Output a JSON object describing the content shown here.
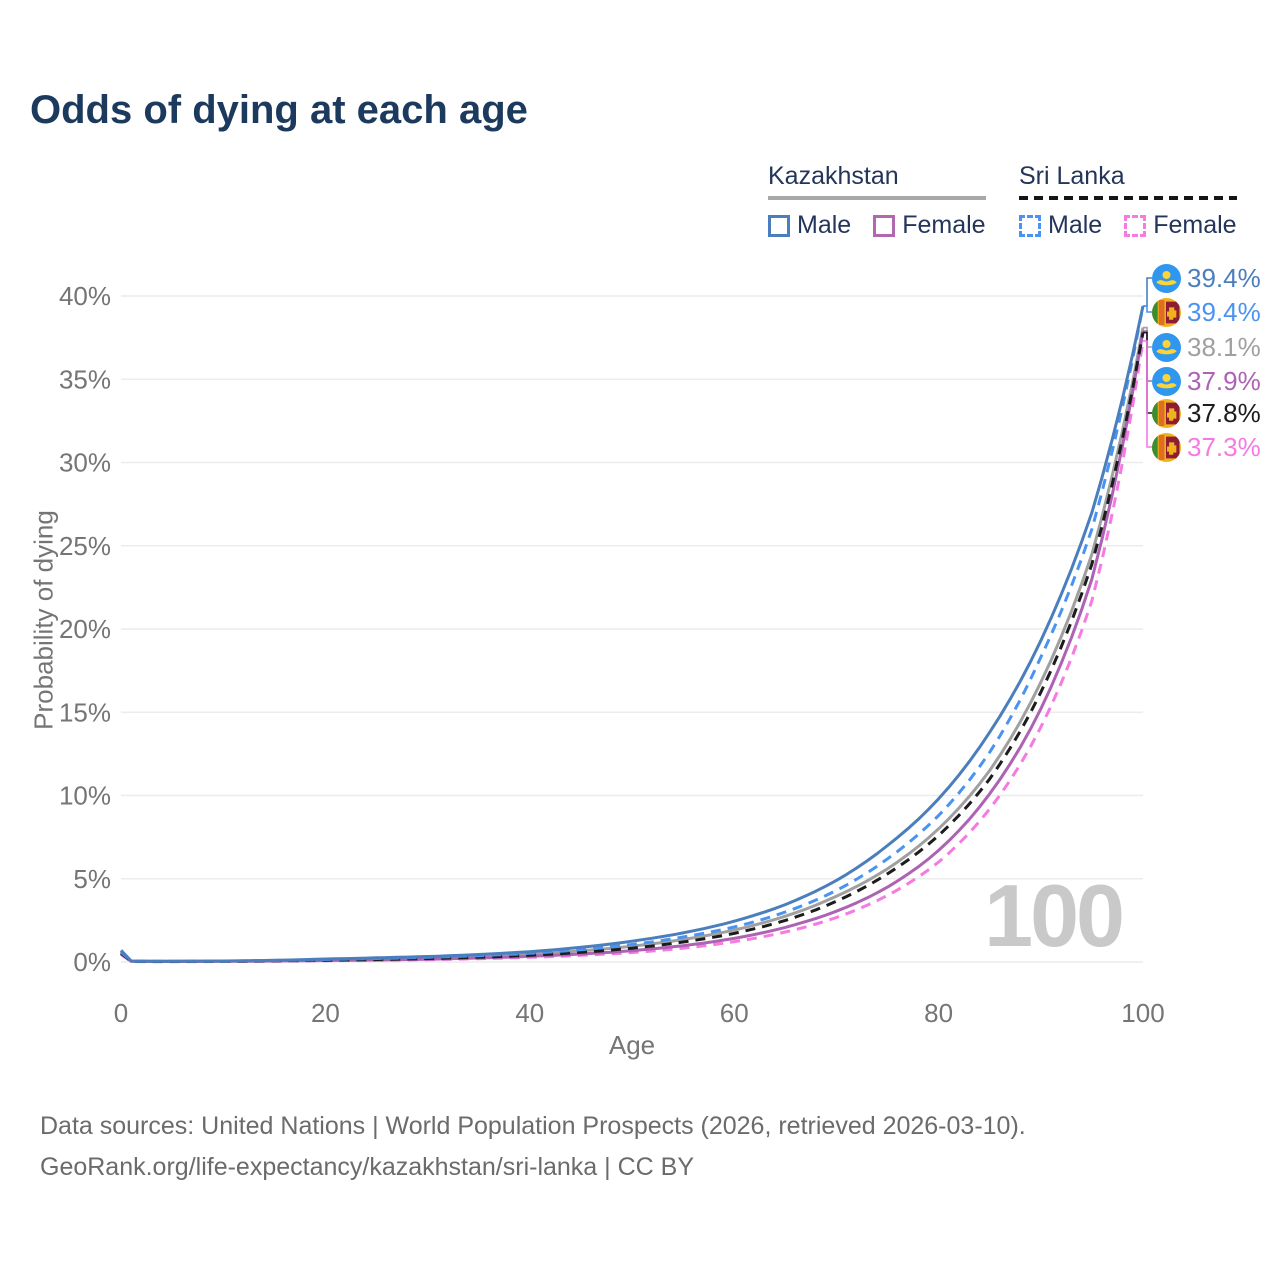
{
  "title": "Odds of dying at each age",
  "watermark_age": "100",
  "legend": {
    "kazakhstan": {
      "label": "Kazakhstan",
      "male": "Male",
      "female": "Female"
    },
    "sri_lanka": {
      "label": "Sri Lanka",
      "male": "Male",
      "female": "Female"
    }
  },
  "footer": {
    "line1": "Data sources: United Nations | World Population Prospects (2026, retrieved 2026-03-10).",
    "line2": "GeoRank.org/life-expectancy/kazakhstan/sri-lanka | CC BY"
  },
  "chart_data": {
    "type": "line",
    "title": "Odds of dying at each age",
    "xlabel": "Age",
    "ylabel": "Probability of dying",
    "xlim": [
      0,
      100
    ],
    "ylim": [
      0,
      40
    ],
    "x_ticks": [
      0,
      20,
      40,
      60,
      80,
      100
    ],
    "y_ticks": [
      0,
      5,
      10,
      15,
      20,
      25,
      30,
      35,
      40
    ],
    "y_tick_suffix": "%",
    "grid": "horizontal",
    "legend_position": "top-right",
    "ages": [
      0,
      1,
      3,
      5,
      10,
      15,
      20,
      25,
      30,
      35,
      40,
      45,
      50,
      55,
      60,
      65,
      70,
      75,
      80,
      85,
      90,
      95,
      100
    ],
    "series": [
      {
        "name": "Sri Lanka Female",
        "country": "sri-lanka",
        "sex": "female",
        "style": "dashed",
        "color": "#f779e2",
        "values": [
          0.45,
          0.03,
          0.02,
          0.02,
          0.03,
          0.05,
          0.08,
          0.1,
          0.14,
          0.2,
          0.28,
          0.4,
          0.57,
          0.83,
          1.22,
          1.8,
          2.67,
          4.0,
          6.0,
          9.2,
          14.1,
          21.7,
          37.3
        ]
      },
      {
        "name": "Kazakhstan Combined",
        "country": "kazakhstan",
        "sex": "combined",
        "style": "solid",
        "color": "#a0a0a0",
        "values": [
          0.62,
          0.05,
          0.04,
          0.04,
          0.05,
          0.08,
          0.14,
          0.19,
          0.26,
          0.35,
          0.48,
          0.67,
          0.95,
          1.35,
          1.92,
          2.75,
          3.95,
          5.6,
          8.0,
          11.5,
          16.8,
          24.5,
          38.1
        ]
      },
      {
        "name": "Kazakhstan Female",
        "country": "kazakhstan",
        "sex": "female",
        "style": "solid",
        "color": "#ad62b4",
        "values": [
          0.55,
          0.04,
          0.03,
          0.03,
          0.04,
          0.06,
          0.09,
          0.12,
          0.17,
          0.24,
          0.34,
          0.48,
          0.68,
          0.98,
          1.42,
          2.08,
          3.05,
          4.5,
          6.7,
          10.1,
          15.2,
          23.0,
          37.9
        ]
      },
      {
        "name": "Sri Lanka Combined",
        "country": "sri-lanka",
        "sex": "combined",
        "style": "dashed",
        "color": "#1c1c1c",
        "values": [
          0.52,
          0.04,
          0.03,
          0.03,
          0.04,
          0.07,
          0.11,
          0.15,
          0.21,
          0.29,
          0.41,
          0.58,
          0.83,
          1.2,
          1.72,
          2.5,
          3.65,
          5.3,
          7.6,
          11.0,
          16.2,
          23.9,
          37.8
        ]
      },
      {
        "name": "Sri Lanka Male",
        "country": "sri-lanka",
        "sex": "male",
        "style": "dashed",
        "color": "#4a93f2",
        "values": [
          0.6,
          0.05,
          0.04,
          0.04,
          0.05,
          0.09,
          0.15,
          0.21,
          0.28,
          0.38,
          0.52,
          0.74,
          1.05,
          1.5,
          2.1,
          3.0,
          4.3,
          6.2,
          8.8,
          12.6,
          18.3,
          26.0,
          39.4
        ]
      },
      {
        "name": "Kazakhstan Male",
        "country": "kazakhstan",
        "sex": "male",
        "style": "solid",
        "color": "#4a7ebc",
        "values": [
          0.7,
          0.06,
          0.05,
          0.05,
          0.06,
          0.1,
          0.18,
          0.25,
          0.33,
          0.45,
          0.62,
          0.88,
          1.25,
          1.75,
          2.45,
          3.45,
          4.9,
          7.0,
          9.8,
          13.8,
          19.3,
          27.0,
          39.4
        ]
      }
    ]
  },
  "end_labels": [
    {
      "flag": "kazakhstan",
      "series": "Kazakhstan Male",
      "value": "39.4%",
      "color": "#4a7ebc"
    },
    {
      "flag": "sri-lanka",
      "series": "Sri Lanka Male",
      "value": "39.4%",
      "color": "#4a93f2"
    },
    {
      "flag": "kazakhstan",
      "series": "Kazakhstan Combined",
      "value": "38.1%",
      "color": "#a0a0a0"
    },
    {
      "flag": "kazakhstan",
      "series": "Kazakhstan Female",
      "value": "37.9%",
      "color": "#ad62b4"
    },
    {
      "flag": "sri-lanka",
      "series": "Sri Lanka Combined",
      "value": "37.8%",
      "color": "#1c1c1c"
    },
    {
      "flag": "sri-lanka",
      "series": "Sri Lanka Female",
      "value": "37.3%",
      "color": "#f779e2"
    }
  ]
}
